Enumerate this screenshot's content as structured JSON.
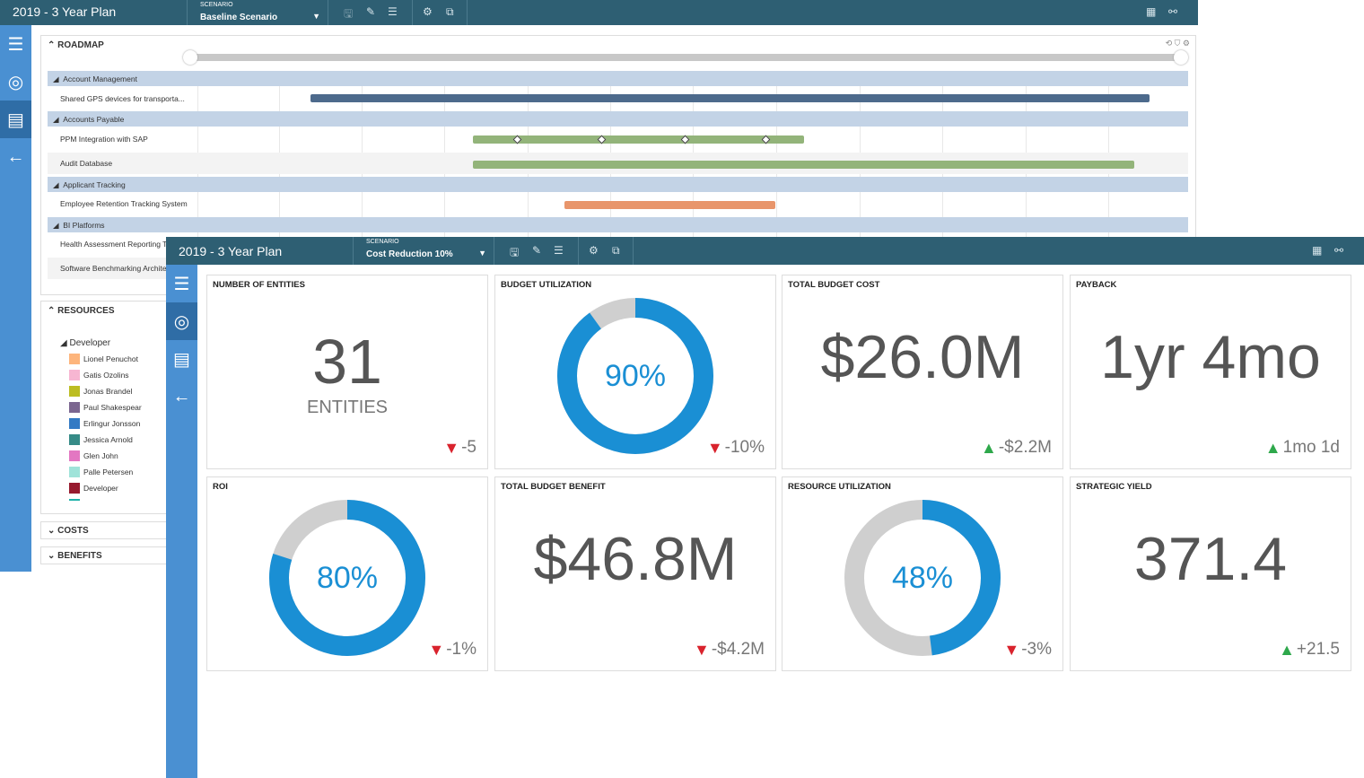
{
  "back": {
    "title": "2019 - 3 Year Plan",
    "scenario_label": "SCENARIO",
    "scenario": "Baseline Scenario",
    "roadmap_title": "ROADMAP",
    "groups": [
      {
        "label": "Account Management"
      },
      {
        "label": "Accounts Payable"
      },
      {
        "label": "Applicant Tracking"
      },
      {
        "label": "BI Platforms"
      }
    ],
    "tasks": [
      {
        "label": "Shared GPS devices for transporta..."
      },
      {
        "label": "PPM Integration with SAP"
      },
      {
        "label": "Audit Database"
      },
      {
        "label": "Employee Retention Tracking System"
      },
      {
        "label": "Health Assessment Reporting Tool"
      },
      {
        "label": "Software Benchmarking Architecture"
      }
    ],
    "resources_title": "RESOURCES",
    "resource_group": "Developer",
    "resources": [
      {
        "name": "Lionel Penuchot",
        "color": "#fdb57c"
      },
      {
        "name": "Gatis Ozolins",
        "color": "#f7b6d2"
      },
      {
        "name": "Jonas Brandel",
        "color": "#bcbd22"
      },
      {
        "name": "Paul Shakespear",
        "color": "#7b6690"
      },
      {
        "name": "Erlingur Jonsson",
        "color": "#337ac4"
      },
      {
        "name": "Jessica Arnold",
        "color": "#368b87"
      },
      {
        "name": "Glen John",
        "color": "#e377c2"
      },
      {
        "name": "Palle Petersen",
        "color": "#9fe3d9"
      },
      {
        "name": "Developer",
        "color": "#961a2e"
      }
    ],
    "costs_title": "COSTS",
    "benefits_title": "BENEFITS"
  },
  "front": {
    "title": "2019 - 3 Year Plan",
    "scenario_label": "SCENARIO",
    "scenario": "Cost Reduction 10%",
    "cards": [
      {
        "title": "NUMBER OF ENTITIES",
        "value": "31",
        "sub": "ENTITIES",
        "delta": "-5",
        "dir": "down"
      },
      {
        "title": "BUDGET UTILIZATION",
        "value": "90%",
        "percent": 90,
        "delta": "-10%",
        "dir": "down"
      },
      {
        "title": "TOTAL BUDGET COST",
        "value": "$26.0M",
        "delta": "-$2.2M",
        "dir": "up"
      },
      {
        "title": "PAYBACK",
        "value": "1yr 4mo",
        "delta": "1mo 1d",
        "dir": "up"
      },
      {
        "title": "ROI",
        "value": "80%",
        "percent": 80,
        "delta": "-1%",
        "dir": "down"
      },
      {
        "title": "TOTAL BUDGET BENEFIT",
        "value": "$46.8M",
        "delta": "-$4.2M",
        "dir": "down"
      },
      {
        "title": "RESOURCE UTILIZATION",
        "value": "48%",
        "percent": 48,
        "delta": "-3%",
        "dir": "down"
      },
      {
        "title": "STRATEGIC YIELD",
        "value": "371.4",
        "delta": "+21.5",
        "dir": "up"
      }
    ]
  },
  "colors": {
    "header": "#2e5f73",
    "sidebar": "#4a90d2",
    "donut": "#1a8fd4",
    "down": "#d9232d",
    "up": "#2ea84b"
  }
}
